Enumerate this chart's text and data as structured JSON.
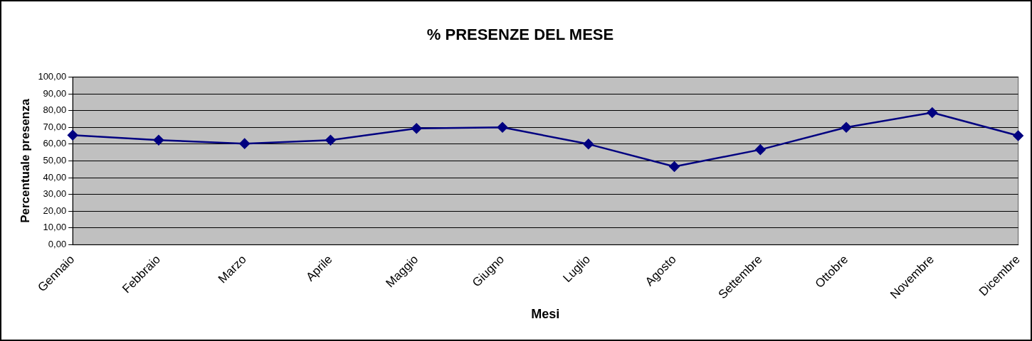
{
  "chart_data": {
    "type": "line",
    "title": "% PRESENZE DEL MESE",
    "xlabel": "Mesi",
    "ylabel": "Percentuale presenza",
    "categories": [
      "Gennaio",
      "Febbraio",
      "Marzo",
      "Aprile",
      "Maggio",
      "Giugno",
      "Luglio",
      "Agosto",
      "Settembre",
      "Ottobre",
      "Novembre",
      "Dicembre"
    ],
    "series": [
      {
        "color": "#000080",
        "values": [
          65.3,
          62.4,
          60.3,
          62.4,
          69.4,
          70.0,
          60.0,
          46.6,
          56.7,
          70.0,
          78.8,
          65.0
        ]
      }
    ],
    "ylim": [
      0,
      100
    ],
    "yticks": [
      {
        "value": 0,
        "label": "0,00"
      },
      {
        "value": 10,
        "label": "10,00"
      },
      {
        "value": 20,
        "label": "20,00"
      },
      {
        "value": 30,
        "label": "30,00"
      },
      {
        "value": 40,
        "label": "40,00"
      },
      {
        "value": 50,
        "label": "50,00"
      },
      {
        "value": 60,
        "label": "60,00"
      },
      {
        "value": 70,
        "label": "70,00"
      },
      {
        "value": 80,
        "label": "80,00"
      },
      {
        "value": 90,
        "label": "90,00"
      },
      {
        "value": 100,
        "label": "100,00"
      }
    ],
    "grid": "y",
    "legend": false,
    "marker": "diamond",
    "line_style": "solid"
  }
}
